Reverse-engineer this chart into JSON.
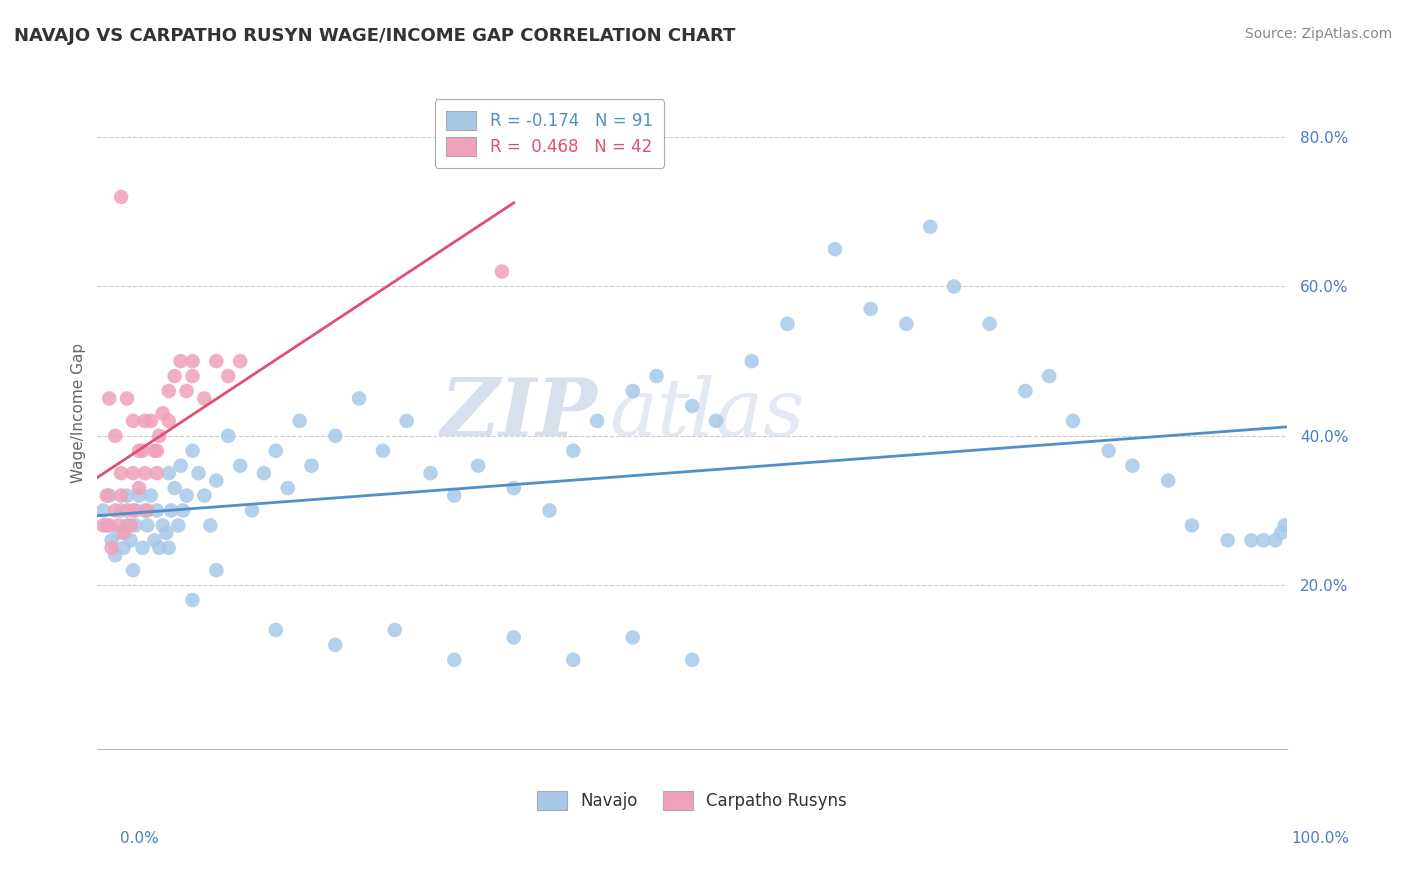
{
  "title": "NAVAJO VS CARPATHO RUSYN WAGE/INCOME GAP CORRELATION CHART",
  "source": "Source: ZipAtlas.com",
  "ylabel": "Wage/Income Gap",
  "xmin": 0.0,
  "xmax": 1.0,
  "ymin": -0.02,
  "ymax": 0.88,
  "yticks": [
    0.2,
    0.4,
    0.6,
    0.8
  ],
  "ytick_labels": [
    "20.0%",
    "40.0%",
    "60.0%",
    "80.0%"
  ],
  "legend_r_navajo": "R = -0.174",
  "legend_n_navajo": "N = 91",
  "legend_r_carpatho": "R =  0.468",
  "legend_n_carpatho": "N = 42",
  "navajo_color": "#A8C8E8",
  "carpatho_color": "#F0A0B8",
  "navajo_line_color": "#5090C8",
  "carpatho_line_color": "#E05070",
  "background_color": "#FFFFFF",
  "grid_color": "#C8C8C8",
  "watermark_zip": "ZIP",
  "watermark_atlas": "atlas",
  "navajo_x": [
    0.005,
    0.008,
    0.01,
    0.012,
    0.015,
    0.018,
    0.02,
    0.022,
    0.025,
    0.025,
    0.028,
    0.03,
    0.03,
    0.032,
    0.035,
    0.038,
    0.04,
    0.042,
    0.045,
    0.048,
    0.05,
    0.052,
    0.055,
    0.058,
    0.06,
    0.062,
    0.065,
    0.068,
    0.07,
    0.072,
    0.075,
    0.08,
    0.085,
    0.09,
    0.095,
    0.1,
    0.11,
    0.12,
    0.13,
    0.14,
    0.15,
    0.16,
    0.17,
    0.18,
    0.2,
    0.22,
    0.24,
    0.26,
    0.28,
    0.3,
    0.32,
    0.35,
    0.38,
    0.4,
    0.42,
    0.45,
    0.47,
    0.5,
    0.52,
    0.55,
    0.58,
    0.62,
    0.65,
    0.68,
    0.7,
    0.72,
    0.75,
    0.78,
    0.8,
    0.82,
    0.85,
    0.87,
    0.9,
    0.92,
    0.95,
    0.97,
    0.98,
    0.99,
    0.995,
    0.998,
    0.06,
    0.08,
    0.1,
    0.15,
    0.2,
    0.25,
    0.3,
    0.35,
    0.4,
    0.45,
    0.5
  ],
  "navajo_y": [
    0.3,
    0.28,
    0.32,
    0.26,
    0.24,
    0.27,
    0.3,
    0.25,
    0.28,
    0.32,
    0.26,
    0.3,
    0.22,
    0.28,
    0.32,
    0.25,
    0.3,
    0.28,
    0.32,
    0.26,
    0.3,
    0.25,
    0.28,
    0.27,
    0.35,
    0.3,
    0.33,
    0.28,
    0.36,
    0.3,
    0.32,
    0.38,
    0.35,
    0.32,
    0.28,
    0.34,
    0.4,
    0.36,
    0.3,
    0.35,
    0.38,
    0.33,
    0.42,
    0.36,
    0.4,
    0.45,
    0.38,
    0.42,
    0.35,
    0.32,
    0.36,
    0.33,
    0.3,
    0.38,
    0.42,
    0.46,
    0.48,
    0.44,
    0.42,
    0.5,
    0.55,
    0.65,
    0.57,
    0.55,
    0.68,
    0.6,
    0.55,
    0.46,
    0.48,
    0.42,
    0.38,
    0.36,
    0.34,
    0.28,
    0.26,
    0.26,
    0.26,
    0.26,
    0.27,
    0.28,
    0.25,
    0.18,
    0.22,
    0.14,
    0.12,
    0.14,
    0.1,
    0.13,
    0.1,
    0.13,
    0.1
  ],
  "carpatho_x": [
    0.005,
    0.008,
    0.01,
    0.012,
    0.015,
    0.018,
    0.02,
    0.022,
    0.025,
    0.028,
    0.03,
    0.032,
    0.035,
    0.038,
    0.04,
    0.042,
    0.045,
    0.048,
    0.05,
    0.052,
    0.055,
    0.06,
    0.065,
    0.07,
    0.075,
    0.08,
    0.09,
    0.1,
    0.11,
    0.12,
    0.01,
    0.015,
    0.02,
    0.025,
    0.03,
    0.035,
    0.04,
    0.05,
    0.06,
    0.08,
    0.02,
    0.34
  ],
  "carpatho_y": [
    0.28,
    0.32,
    0.28,
    0.25,
    0.3,
    0.28,
    0.32,
    0.27,
    0.3,
    0.28,
    0.35,
    0.3,
    0.33,
    0.38,
    0.35,
    0.3,
    0.42,
    0.38,
    0.35,
    0.4,
    0.43,
    0.46,
    0.48,
    0.5,
    0.46,
    0.48,
    0.45,
    0.5,
    0.48,
    0.5,
    0.45,
    0.4,
    0.35,
    0.45,
    0.42,
    0.38,
    0.42,
    0.38,
    0.42,
    0.5,
    0.72,
    0.62
  ]
}
